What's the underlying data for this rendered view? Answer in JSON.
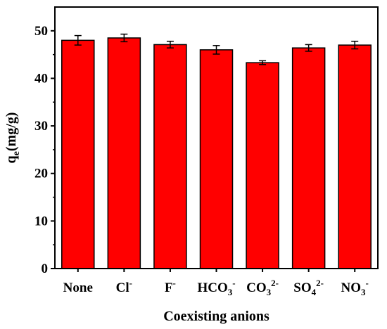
{
  "chart_data": {
    "type": "bar",
    "categories": [
      {
        "base": "None",
        "sub": "",
        "sup": ""
      },
      {
        "base": "Cl",
        "sub": "",
        "sup": "-"
      },
      {
        "base": "F",
        "sub": "",
        "sup": "-"
      },
      {
        "base": "HCO",
        "sub": "3",
        "sup": "-"
      },
      {
        "base": "CO",
        "sub": "3",
        "sup": "2-"
      },
      {
        "base": "SO",
        "sub": "4",
        "sup": "2-"
      },
      {
        "base": "NO",
        "sub": "3",
        "sup": "-"
      }
    ],
    "values": [
      48.0,
      48.5,
      47.1,
      46.0,
      43.3,
      46.4,
      47.0
    ],
    "errors": [
      1.0,
      0.8,
      0.7,
      0.9,
      0.4,
      0.7,
      0.8
    ],
    "xlabel": "Coexisting anions",
    "ylabel": {
      "base": "q",
      "sub": "e",
      "rest": "(mg/g)"
    },
    "ylim": [
      0,
      55
    ],
    "yticks": [
      0,
      10,
      20,
      30,
      40,
      50
    ],
    "bar_color": "#ff0000",
    "grid": false
  }
}
